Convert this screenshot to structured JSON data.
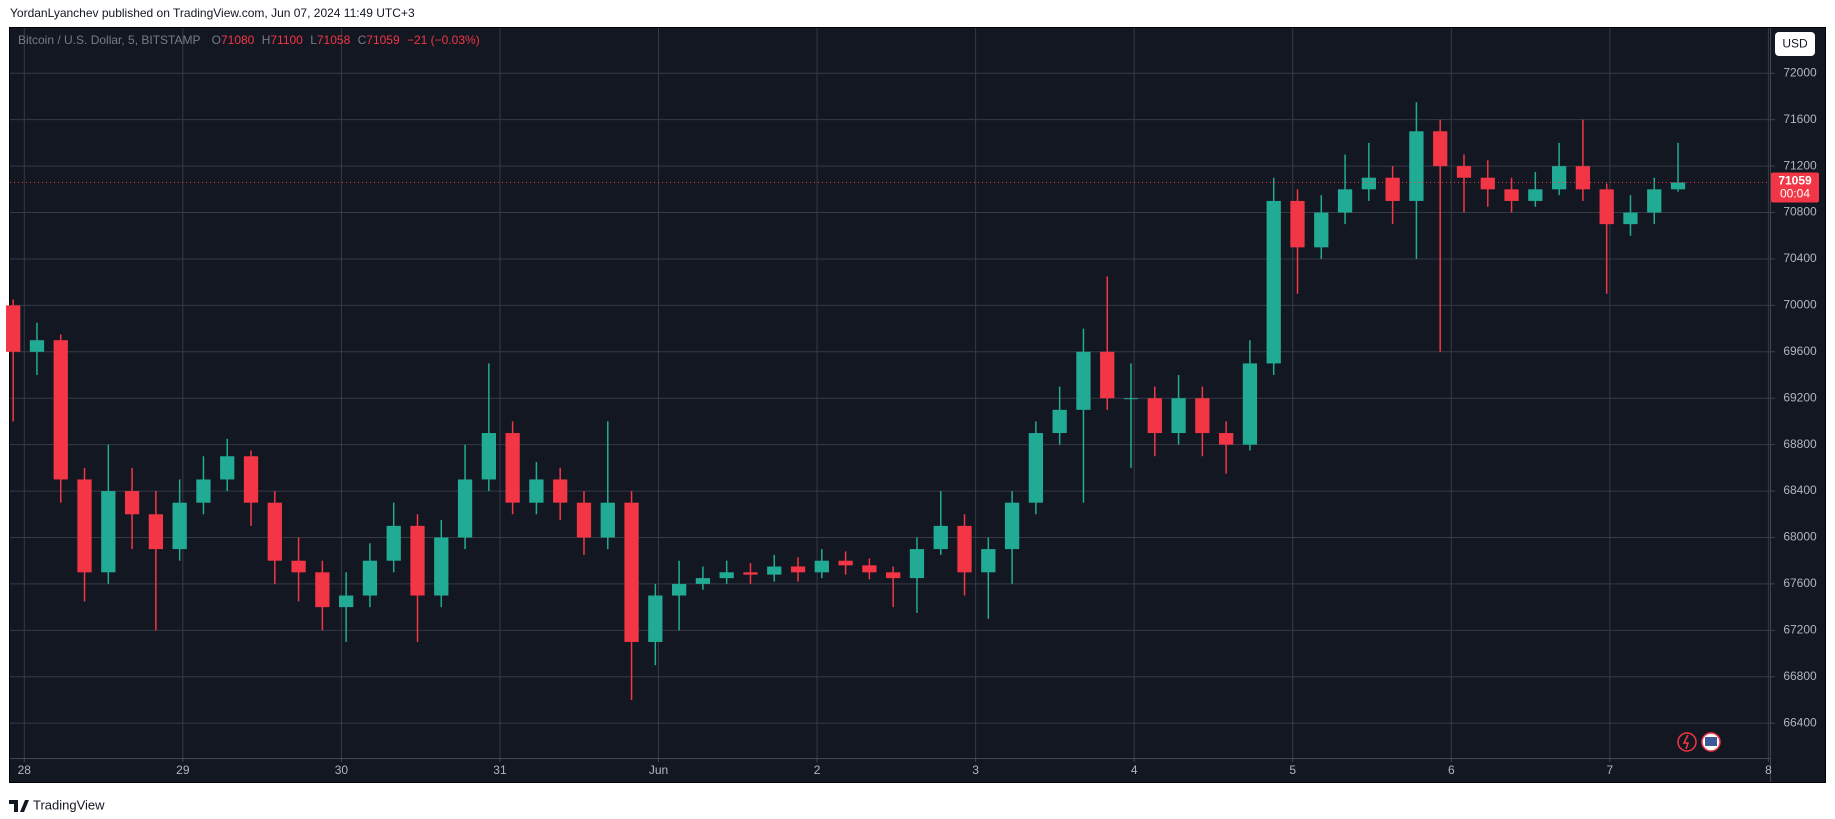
{
  "header": {
    "published": "YordanLyanchev published on TradingView.com, Jun 07, 2024 11:49 UTC+3"
  },
  "chart_data": {
    "type": "candlestick",
    "symbol": "Bitcoin / U.S. Dollar, 5, BITSTAMP",
    "legend": {
      "open_label": "O",
      "open": 71080,
      "high_label": "H",
      "high": 71100,
      "low_label": "L",
      "low": 71058,
      "close_label": "C",
      "close": 71059,
      "change": "−21 (−0.03%)"
    },
    "currency": "USD",
    "last_price": 71059,
    "countdown": "00:04",
    "x": [
      -0.07,
      0.08,
      0.23,
      0.38,
      0.53,
      0.68,
      0.83,
      0.98,
      1.13,
      1.28,
      1.43,
      1.58,
      1.73,
      1.88,
      2.03,
      2.18,
      2.33,
      2.48,
      2.63,
      2.78,
      2.93,
      3.08,
      3.23,
      3.38,
      3.53,
      3.68,
      3.83,
      3.98,
      4.13,
      4.28,
      4.43,
      4.58,
      4.73,
      4.88,
      5.03,
      5.18,
      5.33,
      5.48,
      5.63,
      5.78,
      5.93,
      6.08,
      6.23,
      6.38,
      6.53,
      6.68,
      6.83,
      6.98,
      7.13,
      7.28,
      7.43,
      7.58,
      7.73,
      7.88,
      8.03,
      8.18,
      8.33,
      8.48,
      8.63,
      8.78,
      8.93,
      9.08,
      9.23,
      9.38,
      9.53,
      9.68,
      9.83,
      9.98,
      10.13,
      10.28,
      10.43
    ],
    "open": [
      70000,
      69600,
      69700,
      68500,
      67700,
      68400,
      68200,
      67900,
      68300,
      68500,
      68700,
      68300,
      67800,
      67700,
      67400,
      67500,
      67800,
      68100,
      67500,
      68000,
      68500,
      68900,
      68300,
      68500,
      68300,
      68000,
      68300,
      67100,
      67500,
      67600,
      67650,
      67700,
      67680,
      67750,
      67700,
      67800,
      67760,
      67700,
      67650,
      67900,
      68100,
      67700,
      67900,
      68300,
      68900,
      69100,
      69600,
      69200,
      69200,
      68900,
      69200,
      68900,
      68800,
      69500,
      70900,
      70500,
      70800,
      71000,
      71100,
      70900,
      71500,
      71200,
      71100,
      71000,
      70900,
      71000,
      71200,
      71000,
      70700,
      70800,
      71000
    ],
    "high": [
      70050,
      69850,
      69750,
      68600,
      68800,
      68600,
      68400,
      68500,
      68700,
      68850,
      68750,
      68400,
      68000,
      67800,
      67700,
      67950,
      68300,
      68200,
      68150,
      68800,
      69500,
      69000,
      68650,
      68600,
      68400,
      69000,
      68400,
      67600,
      67800,
      67750,
      67800,
      67780,
      67850,
      67830,
      67900,
      67880,
      67820,
      67750,
      68000,
      68400,
      68200,
      68000,
      68400,
      69000,
      69300,
      69800,
      70250,
      69500,
      69300,
      69400,
      69300,
      69000,
      69700,
      71100,
      71000,
      70950,
      71300,
      71400,
      71200,
      71750,
      71600,
      71300,
      71250,
      71100,
      71150,
      71400,
      71600,
      71050,
      70950,
      71100,
      71400
    ],
    "low": [
      69000,
      69400,
      68300,
      67450,
      67600,
      67900,
      67200,
      67800,
      68200,
      68400,
      68100,
      67600,
      67450,
      67200,
      67100,
      67400,
      67700,
      67100,
      67400,
      67900,
      68400,
      68200,
      68200,
      68150,
      67850,
      67900,
      66600,
      66900,
      67200,
      67550,
      67600,
      67600,
      67620,
      67620,
      67650,
      67680,
      67640,
      67400,
      67350,
      67850,
      67500,
      67300,
      67600,
      68200,
      68800,
      68300,
      69100,
      68600,
      68700,
      68800,
      68700,
      68550,
      68750,
      69400,
      70100,
      70400,
      70700,
      70900,
      70700,
      70400,
      69600,
      70800,
      70850,
      70800,
      70850,
      70950,
      70900,
      70100,
      70600,
      70700,
      70980
    ],
    "close": [
      69600,
      69700,
      68500,
      67700,
      68400,
      68200,
      67900,
      68300,
      68500,
      68700,
      68300,
      67800,
      67700,
      67400,
      67500,
      67800,
      68100,
      67500,
      68000,
      68500,
      68900,
      68300,
      68500,
      68300,
      68000,
      68300,
      67100,
      67500,
      67600,
      67650,
      67700,
      67680,
      67750,
      67700,
      67800,
      67760,
      67700,
      67650,
      67900,
      68100,
      67700,
      67900,
      68300,
      68900,
      69100,
      69600,
      69200,
      69200,
      68900,
      69200,
      68900,
      68800,
      69500,
      70900,
      70500,
      70800,
      71000,
      71100,
      70900,
      71500,
      71200,
      71100,
      71000,
      70900,
      71000,
      71200,
      71000,
      70700,
      70800,
      71000,
      71059
    ],
    "up_color": "#22ab94",
    "down_color": "#f23645",
    "xlim": [
      -0.09,
      11.01
    ],
    "xticks": [
      {
        "value": 0,
        "label": "28"
      },
      {
        "value": 1,
        "label": "29"
      },
      {
        "value": 2,
        "label": "30"
      },
      {
        "value": 3,
        "label": "31"
      },
      {
        "value": 4,
        "label": "Jun"
      },
      {
        "value": 5,
        "label": "2"
      },
      {
        "value": 6,
        "label": "3"
      },
      {
        "value": 7,
        "label": "4"
      },
      {
        "value": 8,
        "label": "5"
      },
      {
        "value": 9,
        "label": "6"
      },
      {
        "value": 10,
        "label": "7"
      },
      {
        "value": 11,
        "label": "8"
      }
    ],
    "ylim": [
      66100,
      72390
    ],
    "yticks": [
      66400,
      66800,
      67200,
      67600,
      68000,
      68400,
      68800,
      69200,
      69600,
      70000,
      70400,
      70800,
      71200,
      71600,
      72000
    ],
    "grid": true
  },
  "footer": {
    "brand": "TradingView"
  }
}
